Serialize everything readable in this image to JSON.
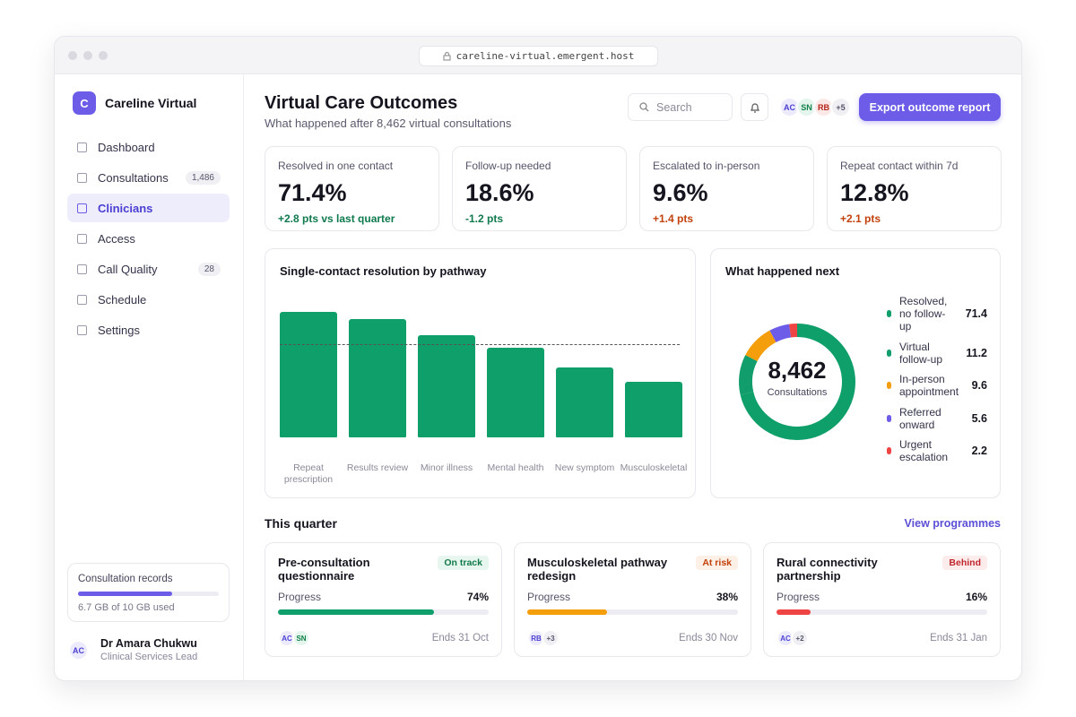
{
  "browser": {
    "url": "careline-virtual.emergent.host"
  },
  "sidebar": {
    "brand": {
      "initial": "C",
      "name": "Careline Virtual"
    },
    "nav": [
      {
        "label": "Dashboard"
      },
      {
        "label": "Consultations",
        "badge": "1,486"
      },
      {
        "label": "Clinicians",
        "active": true
      },
      {
        "label": "Access"
      },
      {
        "label": "Call Quality",
        "badge": "28"
      },
      {
        "label": "Schedule"
      },
      {
        "label": "Settings"
      }
    ],
    "storage": {
      "label": "Consultation records",
      "used": 6.7,
      "total": 10,
      "caption": "6.7 GB of 10 GB used"
    },
    "user": {
      "initials": "AC",
      "name": "Dr Amara Chukwu",
      "role": "Clinical Services Lead"
    }
  },
  "header": {
    "title": "Virtual Care Outcomes",
    "subtitle": "What happened after 8,462 virtual consultations",
    "search_placeholder": "Search",
    "avatars": [
      {
        "initials": "AC",
        "tone": "purple"
      },
      {
        "initials": "SN",
        "tone": "green"
      },
      {
        "initials": "RB",
        "tone": "red"
      }
    ],
    "more": "+5",
    "button": "Export outcome report"
  },
  "kpis": [
    {
      "label": "Resolved in one contact",
      "value": "71.4%",
      "delta": "+2.8 pts vs last quarter",
      "tone": "good"
    },
    {
      "label": "Follow-up needed",
      "value": "18.6%",
      "delta": "-1.2 pts",
      "tone": "good"
    },
    {
      "label": "Escalated to in-person",
      "value": "9.6%",
      "delta": "+1.4 pts",
      "tone": "bad"
    },
    {
      "label": "Repeat contact within 7d",
      "value": "12.8%",
      "delta": "+2.1 pts",
      "tone": "bad"
    }
  ],
  "chart_data": [
    {
      "type": "bar",
      "title": "Single-contact resolution by pathway",
      "categories": [
        "Repeat prescription",
        "Results review",
        "Minor illness",
        "Mental health",
        "New symptom",
        "Musculoskeletal"
      ],
      "values": [
        84,
        79,
        68,
        60,
        47,
        37
      ],
      "color": "#0f9f6a",
      "ylim": [
        0,
        100
      ],
      "reference": 62
    },
    {
      "type": "pie",
      "donut": true,
      "title": "What happened next",
      "center_value": "8,462",
      "center_label": "Consultations",
      "categories": [
        "Resolved, no follow-up",
        "Virtual follow-up",
        "In-person appointment",
        "Referred onward",
        "Urgent escalation"
      ],
      "values": [
        71.4,
        11.2,
        9.6,
        5.6,
        2.2
      ],
      "colors": [
        "#0f9f6a",
        "#129e6c",
        "#f59e0b",
        "#6c5ce7",
        "#ef4444"
      ]
    }
  ],
  "section": {
    "title": "This quarter",
    "link": "View programmes"
  },
  "projects": [
    {
      "name": "Pre-consultation questionnaire",
      "status": "On track",
      "tone": "good",
      "progress_label": "Progress",
      "progress": 74,
      "progress_text": "74%",
      "avatars": [
        {
          "initials": "AC",
          "tone": "purple"
        },
        {
          "initials": "SN",
          "tone": "green"
        }
      ],
      "end": "Ends 31 Oct"
    },
    {
      "name": "Musculoskeletal pathway redesign",
      "status": "At risk",
      "tone": "warn",
      "progress_label": "Progress",
      "progress": 38,
      "progress_text": "38%",
      "avatars": [
        {
          "initials": "RB",
          "tone": "purple"
        }
      ],
      "more": "+3",
      "end": "Ends 30 Nov"
    },
    {
      "name": "Rural connectivity partnership",
      "status": "Behind",
      "tone": "bad",
      "progress_label": "Progress",
      "progress": 16,
      "progress_text": "16%",
      "avatars": [
        {
          "initials": "AC",
          "tone": "purple"
        }
      ],
      "more": "+2",
      "end": "Ends 31 Jan"
    }
  ]
}
